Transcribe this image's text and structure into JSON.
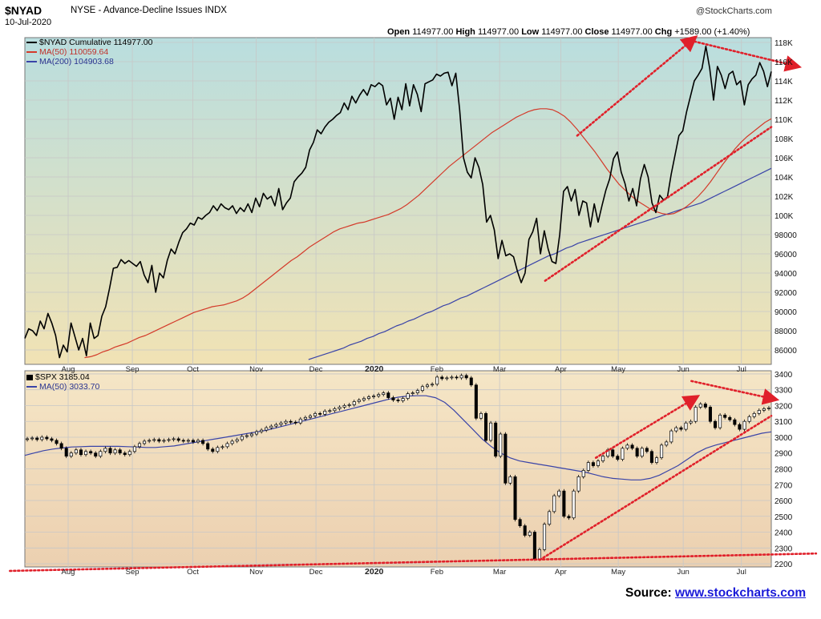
{
  "header": {
    "symbol": "$NYAD",
    "description": "NYSE - Advance-Decline Issues INDX",
    "date": "10-Jul-2020",
    "brand": "@StockCharts.com",
    "ohlc": {
      "open_label": "Open",
      "open": "114977.00",
      "high_label": "High",
      "high": "114977.00",
      "low_label": "Low",
      "low": "114977.00",
      "close_label": "Close",
      "close": "114977.00",
      "change_label": "Chg",
      "change": "+1589.00 (+1.40%)"
    }
  },
  "source": {
    "label": "Source: ",
    "url": "www.stockcharts.com"
  },
  "colors": {
    "price": "#000000",
    "ma50": "#d43a2a",
    "ma200": "#3a44a8",
    "trendline": "#e0202a",
    "top_panel_bg_top": "#b9dedf",
    "top_panel_bg_bottom": "#f1e2b4",
    "bottom_panel_bg_top": "#f5e6c6",
    "bottom_panel_bg_bottom": "#ecd0b0"
  },
  "chart_data": [
    {
      "type": "line",
      "title": "$NYAD Cumulative 114977.00",
      "series": [
        {
          "name": "$NYAD Cumulative 114977.00",
          "color": "#000000",
          "values": [
            87200,
            88200,
            88000,
            87500,
            89000,
            88200,
            89800,
            88800,
            87500,
            85200,
            86500,
            85800,
            88800,
            87400,
            86000,
            87200,
            85400,
            88800,
            87200,
            87500,
            89500,
            90500,
            92400,
            94500,
            94600,
            95400,
            95000,
            95300,
            95000,
            94700,
            95200,
            93800,
            93000,
            94800,
            92000,
            94000,
            93500,
            95300,
            96500,
            96000,
            97200,
            98200,
            98600,
            99200,
            99000,
            99800,
            99600,
            100000,
            100300,
            101000,
            100500,
            101200,
            100800,
            100600,
            101000,
            100200,
            100800,
            100400,
            101200,
            100300,
            101800,
            100900,
            102300,
            101700,
            102000,
            101000,
            102800,
            100600,
            101300,
            101800,
            103500,
            104000,
            104400,
            105000,
            106800,
            107600,
            108900,
            108500,
            109200,
            109700,
            110000,
            110400,
            110700,
            111700,
            111000,
            112400,
            111700,
            112500,
            113100,
            112500,
            113600,
            113400,
            113800,
            113500,
            111500,
            112200,
            110000,
            112300,
            111000,
            113700,
            111400,
            113600,
            112600,
            110800,
            113700,
            113900,
            114100,
            114700,
            114500,
            114800,
            114900,
            113500,
            114800,
            111000,
            106000,
            104500,
            103900,
            106000,
            105000,
            103200,
            99300,
            100000,
            98500,
            95500,
            97400,
            95800,
            96000,
            95700,
            94200,
            93000,
            94000,
            97500,
            98300,
            99700,
            96000,
            98400,
            96500,
            95200,
            95000,
            98000,
            102500,
            103000,
            101500,
            102700,
            100000,
            101500,
            101300,
            98800,
            101200,
            99300,
            101000,
            102600,
            103800,
            105900,
            106600,
            104500,
            103300,
            101500,
            102800,
            101000,
            103800,
            105300,
            104000,
            101300,
            100300,
            102100,
            101600,
            101900,
            104300,
            106300,
            108300,
            108800,
            110800,
            112400,
            114000,
            114600,
            115300,
            117600,
            115300,
            112000,
            115500,
            114600,
            113200,
            114700,
            115000,
            113600,
            114000,
            111500,
            113600,
            114200,
            114600,
            115900,
            115000,
            113400,
            114977
          ]
        },
        {
          "name": "MA(50) 110059.64",
          "color": "#d43a2a",
          "values": [
            85200,
            85300,
            85500,
            85800,
            86000,
            86300,
            86500,
            86700,
            87000,
            87300,
            87500,
            87800,
            88100,
            88400,
            88700,
            89000,
            89300,
            89600,
            89900,
            90100,
            90300,
            90500,
            90600,
            90700,
            90900,
            91100,
            91400,
            91800,
            92300,
            92800,
            93300,
            93800,
            94300,
            94800,
            95300,
            95700,
            96200,
            96700,
            97100,
            97500,
            97900,
            98300,
            98600,
            98800,
            99000,
            99200,
            99300,
            99500,
            99700,
            99900,
            100100,
            100400,
            100700,
            101100,
            101600,
            102100,
            102700,
            103300,
            103900,
            104500,
            105100,
            105600,
            106100,
            106600,
            107100,
            107600,
            108100,
            108600,
            109000,
            109400,
            109800,
            110200,
            110500,
            110800,
            111000,
            111100,
            111100,
            111000,
            110700,
            110300,
            109700,
            109000,
            108200,
            107400,
            106600,
            105700,
            104800,
            104000,
            103200,
            102600,
            102000,
            101500,
            101100,
            100700,
            100400,
            100200,
            100100,
            100200,
            100500,
            100900,
            101400,
            102000,
            102700,
            103500,
            104400,
            105300,
            106100,
            106900,
            107600,
            108200,
            108700,
            109200,
            109700,
            110060
          ]
        },
        {
          "name": "MA(200) 104903.68",
          "color": "#3a44a8",
          "values": [
            85000,
            85200,
            85400,
            85600,
            85800,
            86000,
            86200,
            86500,
            86700,
            86900,
            87200,
            87400,
            87700,
            87900,
            88200,
            88500,
            88700,
            89000,
            89200,
            89500,
            89800,
            90000,
            90300,
            90600,
            90800,
            91100,
            91400,
            91600,
            91900,
            92200,
            92500,
            92800,
            93100,
            93400,
            93700,
            94000,
            94300,
            94600,
            94900,
            95200,
            95500,
            95800,
            96000,
            96300,
            96600,
            96800,
            97100,
            97300,
            97500,
            97700,
            97900,
            98100,
            98300,
            98500,
            98700,
            98900,
            99100,
            99300,
            99500,
            99700,
            99900,
            100100,
            100300,
            100500,
            100700,
            100900,
            101100,
            101300,
            101600,
            101900,
            102200,
            102500,
            102800,
            103100,
            103400,
            103700,
            104000,
            104300,
            104600,
            104904
          ]
        }
      ],
      "series_x_ranges": [
        [
          0,
          1
        ],
        [
          0.08,
          1
        ],
        [
          0.38,
          1
        ]
      ],
      "ylim": [
        84500,
        118500
      ],
      "y_ticks": [
        "86000",
        "88000",
        "90000",
        "92000",
        "94000",
        "96000",
        "98000",
        "100K",
        "102K",
        "104K",
        "106K",
        "108K",
        "110K",
        "112K",
        "114K",
        "116K",
        "118K"
      ],
      "y_tick_values": [
        86000,
        88000,
        90000,
        92000,
        94000,
        96000,
        98000,
        100000,
        102000,
        104000,
        106000,
        108000,
        110000,
        112000,
        114000,
        116000,
        118000
      ],
      "x_ticks": [
        "Aug",
        "Sep",
        "Oct",
        "Nov",
        "Dec",
        "2020",
        "Feb",
        "Mar",
        "Apr",
        "May",
        "Jun",
        "Jul"
      ],
      "x_tick_fracs": [
        0.058,
        0.144,
        0.225,
        0.31,
        0.39,
        0.468,
        0.552,
        0.636,
        0.718,
        0.795,
        0.882,
        0.96
      ],
      "grid": true,
      "legend": "top-left",
      "trendlines": [
        {
          "x0": 0.74,
          "y0": 108300,
          "x1": 0.893,
          "y1": 118200,
          "arrow": true
        },
        {
          "x0": 0.897,
          "y0": 118100,
          "x1": 1.03,
          "y1": 115600,
          "arrow": true
        },
        {
          "x0": 0.697,
          "y0": 93200,
          "x1": 1.0,
          "y1": 109200,
          "arrow": false
        }
      ]
    },
    {
      "type": "candlestick",
      "title": "$SPX 3185.04",
      "series": [
        {
          "name": "$SPX 3185.04",
          "color": "#000000",
          "values": [
            2990,
            2995,
            2985,
            3000,
            2990,
            2980,
            2960,
            2930,
            2880,
            2900,
            2920,
            2890,
            2910,
            2900,
            2880,
            2910,
            2930,
            2900,
            2920,
            2900,
            2890,
            2910,
            2940,
            2960,
            2975,
            2980,
            2985,
            2975,
            2980,
            2985,
            2990,
            2980,
            2975,
            2980,
            2970,
            2980,
            2960,
            2925,
            2910,
            2935,
            2940,
            2960,
            2975,
            2985,
            3005,
            3010,
            3020,
            3035,
            3045,
            3060,
            3070,
            3080,
            3090,
            3100,
            3095,
            3090,
            3115,
            3125,
            3135,
            3150,
            3145,
            3165,
            3168,
            3180,
            3190,
            3200,
            3205,
            3225,
            3235,
            3245,
            3255,
            3260,
            3270,
            3280,
            3250,
            3235,
            3230,
            3245,
            3275,
            3280,
            3295,
            3320,
            3330,
            3335,
            3380,
            3370,
            3375,
            3380,
            3375,
            3390,
            3375,
            3330,
            3120,
            3150,
            2980,
            3090,
            2880,
            3020,
            2710,
            2750,
            2480,
            2440,
            2380,
            2400,
            2230,
            2290,
            2450,
            2530,
            2630,
            2660,
            2500,
            2490,
            2660,
            2750,
            2790,
            2840,
            2820,
            2850,
            2880,
            2920,
            2880,
            2860,
            2930,
            2950,
            2930,
            2880,
            2930,
            2910,
            2840,
            2870,
            2950,
            2970,
            3040,
            3060,
            3050,
            3090,
            3100,
            3190,
            3210,
            3190,
            3100,
            3060,
            3140,
            3125,
            3110,
            3080,
            3050,
            3100,
            3130,
            3150,
            3170,
            3180,
            3185.04
          ]
        },
        {
          "name": "MA(50) 3033.70",
          "color": "#3a44a8",
          "values": [
            2885,
            2900,
            2915,
            2925,
            2932,
            2938,
            2940,
            2942,
            2942,
            2942,
            2942,
            2940,
            2938,
            2935,
            2935,
            2940,
            2945,
            2955,
            2965,
            2975,
            2985,
            2995,
            3005,
            3015,
            3025,
            3035,
            3045,
            3060,
            3075,
            3090,
            3105,
            3120,
            3135,
            3150,
            3165,
            3180,
            3195,
            3210,
            3225,
            3240,
            3253,
            3260,
            3262,
            3262,
            3250,
            3220,
            3170,
            3110,
            3050,
            2990,
            2940,
            2900,
            2870,
            2850,
            2840,
            2830,
            2820,
            2810,
            2800,
            2790,
            2780,
            2765,
            2750,
            2740,
            2735,
            2730,
            2730,
            2740,
            2760,
            2790,
            2820,
            2860,
            2900,
            2930,
            2950,
            2965,
            2980,
            2995,
            3010,
            3025,
            3034
          ]
        }
      ],
      "ylim": [
        2180,
        3420
      ],
      "y_ticks": [
        "2200",
        "2300",
        "2400",
        "2500",
        "2600",
        "2700",
        "2800",
        "2900",
        "3000",
        "3100",
        "3200",
        "3300",
        "3400"
      ],
      "y_tick_values": [
        2200,
        2300,
        2400,
        2500,
        2600,
        2700,
        2800,
        2900,
        3000,
        3100,
        3200,
        3300,
        3400
      ],
      "x_ticks": [
        "Aug",
        "Sep",
        "Oct",
        "Nov",
        "Dec",
        "2020",
        "Feb",
        "Mar",
        "Apr",
        "May",
        "Jun",
        "Jul"
      ],
      "x_tick_fracs": [
        0.058,
        0.144,
        0.225,
        0.31,
        0.39,
        0.468,
        0.552,
        0.636,
        0.718,
        0.795,
        0.882,
        0.96
      ],
      "grid": true,
      "legend": "top-left",
      "trendlines": [
        {
          "x0": 0.765,
          "y0": 2870,
          "x1": 0.895,
          "y1": 3240,
          "arrow": true
        },
        {
          "x0": 0.893,
          "y0": 3355,
          "x1": 1.0,
          "y1": 3245,
          "arrow": true
        },
        {
          "x0": 0.69,
          "y0": 2225,
          "x1": 1.0,
          "y1": 3135,
          "arrow": false
        },
        {
          "x0": -0.02,
          "y0": 2155,
          "x1": 1.06,
          "y1": 2265,
          "arrow": false
        }
      ]
    }
  ]
}
